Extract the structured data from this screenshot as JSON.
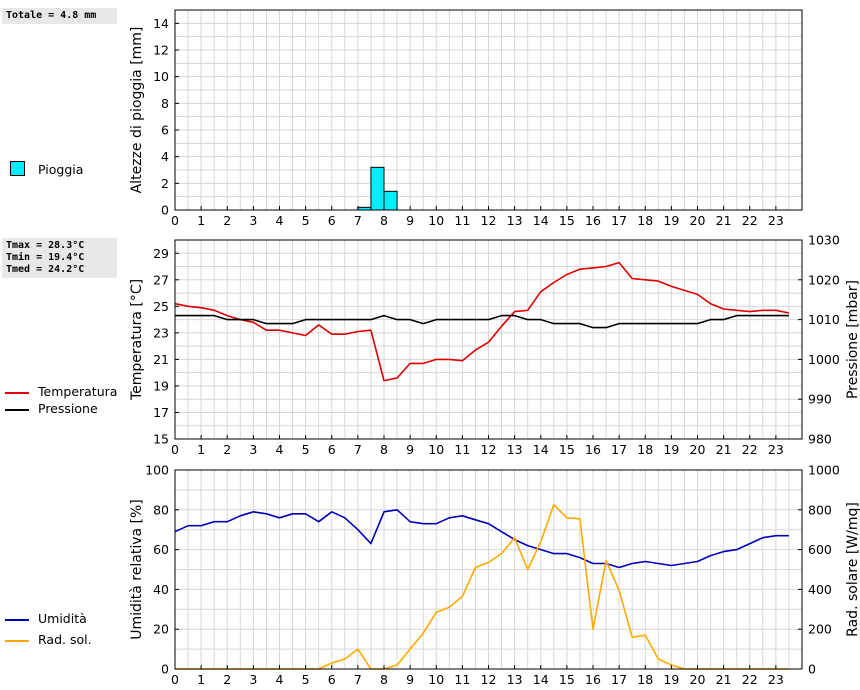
{
  "left_panel": {
    "rain_total": "Totale = 4.8 mm",
    "rain_legend": "Pioggia",
    "temp_stats": [
      "Tmax = 28.3°C",
      "Tmin = 19.4°C",
      "Tmed = 24.2°C"
    ],
    "temp_legend": "Temperatura",
    "press_legend": "Pressione",
    "hum_legend": "Umidità",
    "rad_legend": "Rad. sol."
  },
  "colors": {
    "rain": "#00eeff",
    "temperature": "#dd0000",
    "pressure": "#000000",
    "humidity": "#0000bb",
    "radiation": "#ffaa00",
    "grid": "#d8d8d8"
  },
  "chart_data": [
    {
      "type": "bar",
      "ylabel": "Altezze di pioggia [mm]",
      "ylim": [
        0,
        15
      ],
      "yticks": [
        0,
        2,
        4,
        6,
        8,
        10,
        12,
        14
      ],
      "xlim": [
        0,
        24
      ],
      "xticks": [
        "0",
        "1",
        "2",
        "3",
        "4",
        "5",
        "6",
        "7",
        "8",
        "9",
        "10",
        "11",
        "12",
        "13",
        "14",
        "15",
        "16",
        "17",
        "18",
        "19",
        "20",
        "21",
        "22",
        "23"
      ],
      "series": [
        {
          "name": "Pioggia",
          "x": [
            7.25,
            7.75,
            8.25
          ],
          "values": [
            0.2,
            3.2,
            1.4
          ]
        }
      ],
      "grid": true
    },
    {
      "type": "line",
      "ylabel": "Temperatura [°C]",
      "ylabel_right": "Pressione [mbar]",
      "ylim": [
        15,
        30
      ],
      "yticks": [
        15,
        17,
        19,
        21,
        23,
        25,
        27,
        29
      ],
      "ylim_right": [
        980,
        1030
      ],
      "yticks_right": [
        980,
        990,
        1000,
        1010,
        1020,
        1030
      ],
      "xlim": [
        0,
        24
      ],
      "xticks": [
        "0",
        "1",
        "2",
        "3",
        "4",
        "5",
        "6",
        "7",
        "8",
        "9",
        "10",
        "11",
        "12",
        "13",
        "14",
        "15",
        "16",
        "17",
        "18",
        "19",
        "20",
        "21",
        "22",
        "23"
      ],
      "series": [
        {
          "name": "Temperatura",
          "axis": "left",
          "x": [
            0,
            0.5,
            1,
            1.5,
            2,
            2.5,
            3,
            3.5,
            4,
            4.5,
            5,
            5.5,
            6,
            6.5,
            7,
            7.5,
            8,
            8.5,
            9,
            9.5,
            10,
            10.5,
            11,
            11.5,
            12,
            12.5,
            13,
            13.5,
            14,
            14.5,
            15,
            15.5,
            16,
            16.5,
            17,
            17.5,
            18,
            18.5,
            19,
            19.5,
            20,
            20.5,
            21,
            21.5,
            22,
            22.5,
            23,
            23.5
          ],
          "values": [
            25.2,
            25.0,
            24.9,
            24.7,
            24.3,
            24.0,
            23.8,
            23.2,
            23.2,
            23.0,
            22.8,
            23.6,
            22.9,
            22.9,
            23.1,
            23.2,
            19.4,
            19.6,
            20.7,
            20.7,
            21.0,
            21.0,
            20.9,
            21.7,
            22.3,
            23.5,
            24.6,
            24.7,
            26.1,
            26.8,
            27.4,
            27.8,
            27.9,
            28.0,
            28.3,
            27.1,
            27.0,
            26.9,
            26.5,
            26.2,
            25.9,
            25.2,
            24.8,
            24.7,
            24.6,
            24.7,
            24.7,
            24.5
          ]
        },
        {
          "name": "Pressione",
          "axis": "right",
          "x": [
            0,
            0.5,
            1,
            1.5,
            2,
            2.5,
            3,
            3.5,
            4,
            4.5,
            5,
            5.5,
            6,
            6.5,
            7,
            7.5,
            8,
            8.5,
            9,
            9.5,
            10,
            10.5,
            11,
            11.5,
            12,
            12.5,
            13,
            13.5,
            14,
            14.5,
            15,
            15.5,
            16,
            16.5,
            17,
            17.5,
            18,
            18.5,
            19,
            19.5,
            20,
            20.5,
            21,
            21.5,
            22,
            22.5,
            23,
            23.5
          ],
          "values": [
            1011,
            1011,
            1011,
            1011,
            1010,
            1010,
            1010,
            1009,
            1009,
            1009,
            1010,
            1010,
            1010,
            1010,
            1010,
            1010,
            1011,
            1010,
            1010,
            1009,
            1010,
            1010,
            1010,
            1010,
            1010,
            1011,
            1011,
            1010,
            1010,
            1009,
            1009,
            1009,
            1008,
            1008,
            1009,
            1009,
            1009,
            1009,
            1009,
            1009,
            1009,
            1010,
            1010,
            1011,
            1011,
            1011,
            1011,
            1011
          ]
        }
      ],
      "grid": true
    },
    {
      "type": "line",
      "ylabel": "Umidità relativa [%]",
      "ylabel_right": "Rad. solare [W/mq]",
      "ylim": [
        0,
        100
      ],
      "yticks": [
        0,
        20,
        40,
        60,
        80,
        100
      ],
      "ylim_right": [
        0,
        1000
      ],
      "yticks_right": [
        0,
        200,
        400,
        600,
        800,
        1000
      ],
      "xlim": [
        0,
        24
      ],
      "xticks": [
        "0",
        "1",
        "2",
        "3",
        "4",
        "5",
        "6",
        "7",
        "8",
        "9",
        "10",
        "11",
        "12",
        "13",
        "14",
        "15",
        "16",
        "17",
        "18",
        "19",
        "20",
        "21",
        "22",
        "23"
      ],
      "series": [
        {
          "name": "Umidità",
          "axis": "left",
          "x": [
            0,
            0.5,
            1,
            1.5,
            2,
            2.5,
            3,
            3.5,
            4,
            4.5,
            5,
            5.5,
            6,
            6.5,
            7,
            7.5,
            8,
            8.5,
            9,
            9.5,
            10,
            10.5,
            11,
            11.5,
            12,
            12.5,
            13,
            13.5,
            14,
            14.5,
            15,
            15.5,
            16,
            16.5,
            17,
            17.5,
            18,
            18.5,
            19,
            19.5,
            20,
            20.5,
            21,
            21.5,
            22,
            22.5,
            23,
            23.5
          ],
          "values": [
            69,
            72,
            72,
            74,
            74,
            77,
            79,
            78,
            76,
            78,
            78,
            74,
            79,
            76,
            70,
            63,
            79,
            80,
            74,
            73,
            73,
            76,
            77,
            75,
            73,
            69,
            65,
            62,
            60,
            58,
            58,
            56,
            53,
            53,
            51,
            53,
            54,
            53,
            52,
            53,
            54,
            57,
            59,
            60,
            63,
            66,
            67,
            67
          ]
        },
        {
          "name": "Rad. sol.",
          "axis": "right",
          "x": [
            0,
            0.5,
            1,
            1.5,
            2,
            2.5,
            3,
            3.5,
            4,
            4.5,
            5,
            5.5,
            6,
            6.5,
            7,
            7.5,
            8,
            8.5,
            9,
            9.5,
            10,
            10.5,
            11,
            11.5,
            12,
            12.5,
            13,
            13.5,
            14,
            14.5,
            15,
            15.5,
            16,
            16.5,
            17,
            17.5,
            18,
            18.5,
            19,
            19.5,
            20,
            20.5,
            21,
            21.5,
            22,
            22.5,
            23,
            23.5
          ],
          "values": [
            0,
            0,
            0,
            0,
            0,
            0,
            0,
            0,
            0,
            0,
            0,
            0,
            30,
            50,
            100,
            0,
            0,
            20,
            100,
            180,
            285,
            310,
            365,
            510,
            535,
            580,
            660,
            500,
            640,
            825,
            760,
            755,
            200,
            545,
            395,
            160,
            170,
            50,
            20,
            0,
            0,
            0,
            0,
            0,
            0,
            0,
            0,
            0
          ]
        }
      ],
      "grid": true
    }
  ]
}
